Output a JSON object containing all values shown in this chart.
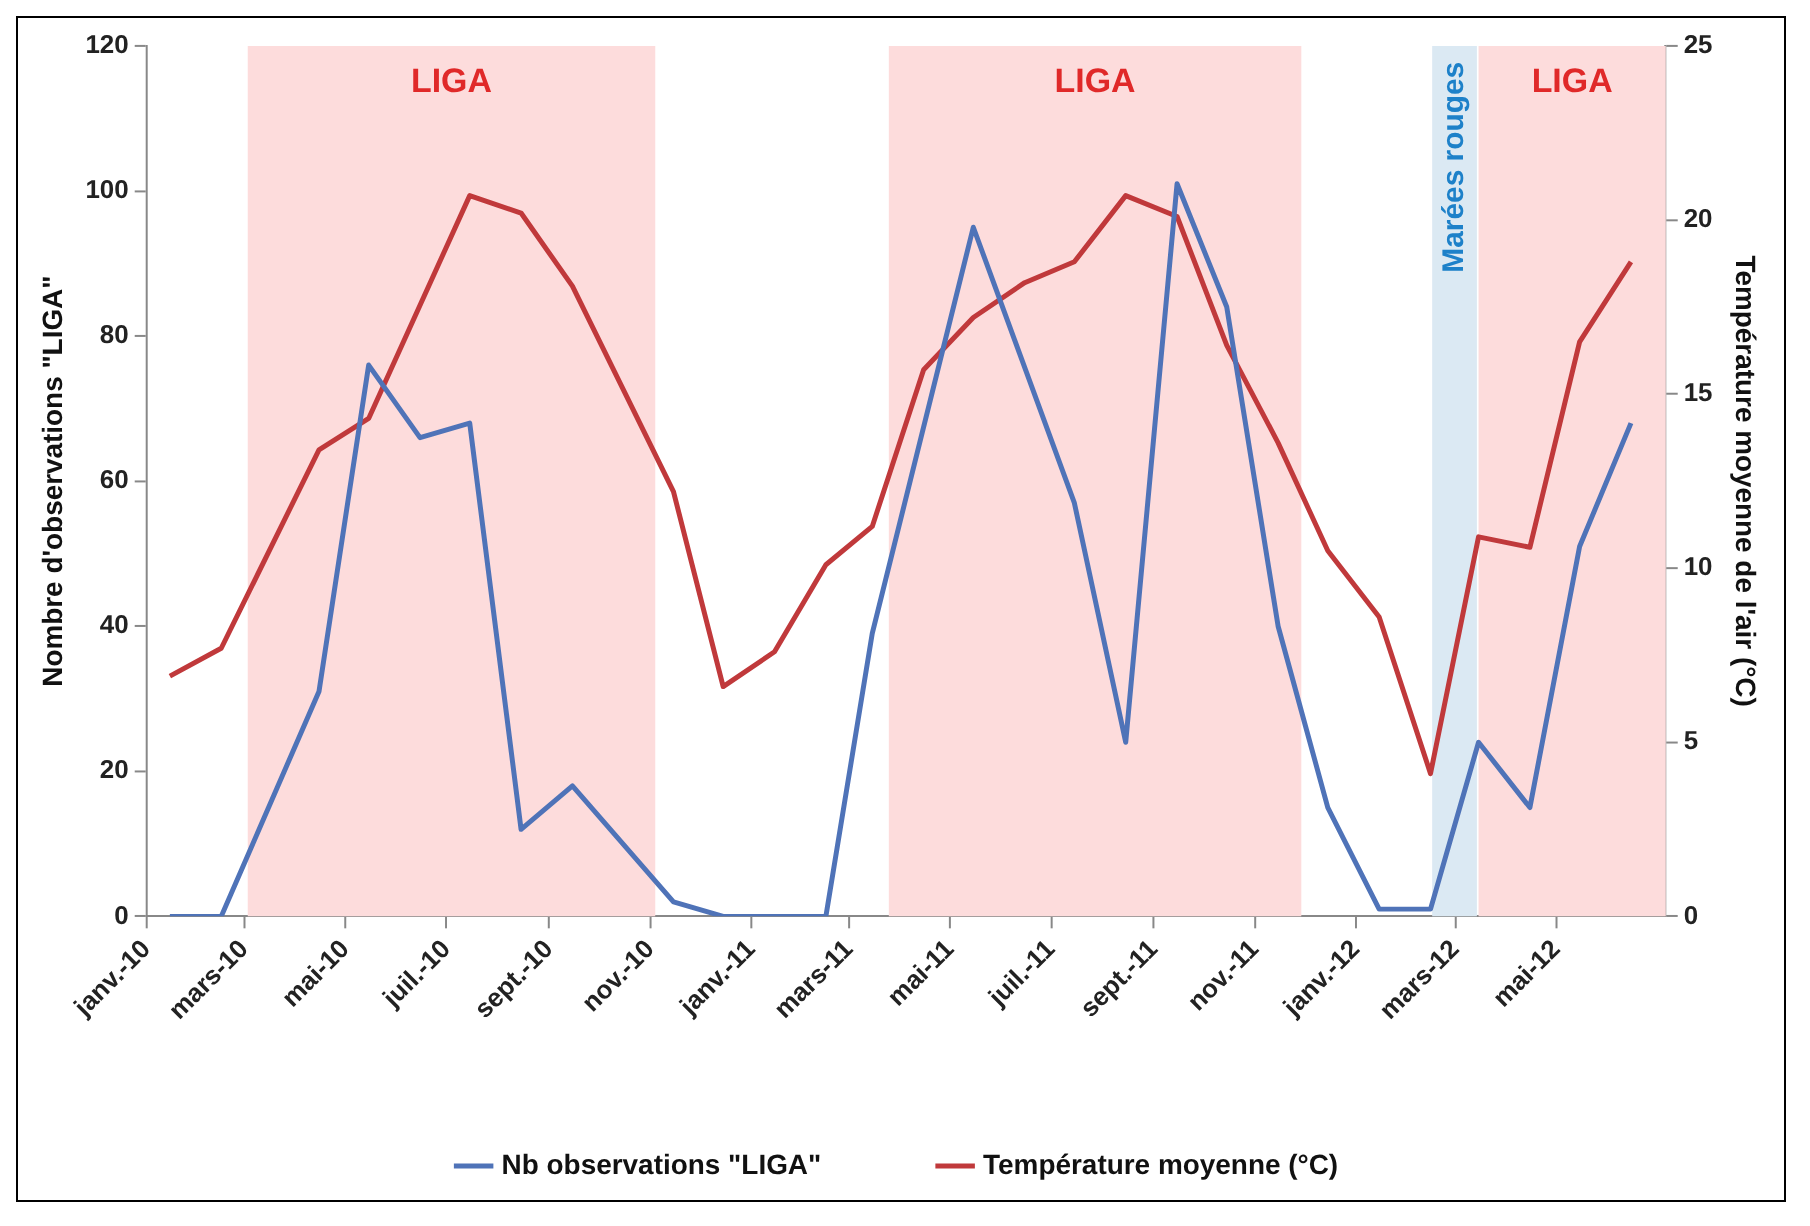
{
  "chart_data": {
    "type": "line",
    "ylabel": "Nombre d'observations \"LIGA\"",
    "y2label": "Température moyenne de l'air (°C)",
    "xlim": [
      "2010-01-01",
      "2012-07-06"
    ],
    "xticks": [
      {
        "value": "2010-01-01",
        "label": "janv.-10"
      },
      {
        "value": "2010-03-01",
        "label": "mars-10"
      },
      {
        "value": "2010-05-01",
        "label": "mai-10"
      },
      {
        "value": "2010-07-01",
        "label": "juil.-10"
      },
      {
        "value": "2010-09-01",
        "label": "sept.-10"
      },
      {
        "value": "2010-11-01",
        "label": "nov.-10"
      },
      {
        "value": "2011-01-01",
        "label": "janv.-11"
      },
      {
        "value": "2011-03-01",
        "label": "mars-11"
      },
      {
        "value": "2011-05-01",
        "label": "mai-11"
      },
      {
        "value": "2011-07-01",
        "label": "juil.-11"
      },
      {
        "value": "2011-09-01",
        "label": "sept.-11"
      },
      {
        "value": "2011-11-01",
        "label": "nov.-11"
      },
      {
        "value": "2012-01-01",
        "label": "janv.-12"
      },
      {
        "value": "2012-03-01",
        "label": "mars-12"
      },
      {
        "value": "2012-05-01",
        "label": "mai-12"
      }
    ],
    "ylim": [
      0,
      120
    ],
    "yticks": [
      0,
      20,
      40,
      60,
      80,
      100,
      120
    ],
    "y2lim": [
      0,
      25
    ],
    "y2ticks": [
      0,
      5,
      10,
      15,
      20,
      25
    ],
    "grid": false,
    "legend": "bottom",
    "bands": [
      {
        "axis": "x",
        "from": "2010-03-03",
        "to": "2010-11-04",
        "label": "LIGA",
        "color": "#fddcdc"
      },
      {
        "axis": "x",
        "from": "2011-03-25",
        "to": "2011-11-29",
        "label": "LIGA",
        "color": "#fddcdc"
      },
      {
        "axis": "x",
        "from": "2012-02-16",
        "to": "2012-03-14",
        "label": "Marées rouges",
        "color": "#dbe9f3"
      },
      {
        "axis": "x",
        "from": "2012-03-15",
        "to": "2012-07-06",
        "label": "LIGA",
        "color": "#fddcdc"
      }
    ],
    "series": [
      {
        "name": "Nb observations \"LIGA\"",
        "color": "#4f73b8",
        "x": [
          "2010-01-15",
          "2010-02-15",
          "2010-04-15",
          "2010-05-15",
          "2010-06-15",
          "2010-07-15",
          "2010-08-15",
          "2010-09-15",
          "2010-11-15",
          "2010-12-15",
          "2011-01-15",
          "2011-02-15",
          "2011-03-15",
          "2011-05-15",
          "2011-07-15",
          "2011-08-15",
          "2011-09-15",
          "2011-10-15",
          "2011-11-15",
          "2011-12-15",
          "2012-01-15",
          "2012-02-15",
          "2012-03-15",
          "2012-04-15",
          "2012-05-15",
          "2012-06-15"
        ],
        "values": [
          0,
          0,
          31,
          76,
          66,
          68,
          12,
          18,
          2,
          0,
          0,
          0,
          39,
          95,
          57,
          24,
          101,
          84,
          40,
          15,
          1,
          1,
          24,
          15,
          51,
          68
        ]
      },
      {
        "name": "Température moyenne (°C)",
        "color": "#c0393b",
        "axis": "y2",
        "x": [
          "2010-01-15",
          "2010-02-15",
          "2010-04-15",
          "2010-05-15",
          "2010-07-15",
          "2010-08-15",
          "2010-09-15",
          "2010-11-15",
          "2010-12-15",
          "2011-01-15",
          "2011-02-15",
          "2011-03-15",
          "2011-04-15",
          "2011-05-15",
          "2011-06-15",
          "2011-07-15",
          "2011-08-15",
          "2011-09-15",
          "2011-10-15",
          "2011-11-15",
          "2011-12-15",
          "2012-01-15",
          "2012-02-15",
          "2012-03-15",
          "2012-04-15",
          "2012-05-15",
          "2012-06-15"
        ],
        "values": [
          6.9,
          7.7,
          13.4,
          14.3,
          20.7,
          20.2,
          18.1,
          12.2,
          6.6,
          7.6,
          10.1,
          11.2,
          15.7,
          17.2,
          18.2,
          18.8,
          20.7,
          20.1,
          16.4,
          13.6,
          10.5,
          8.6,
          4.1,
          10.9,
          10.6,
          16.5,
          18.8
        ]
      }
    ]
  }
}
